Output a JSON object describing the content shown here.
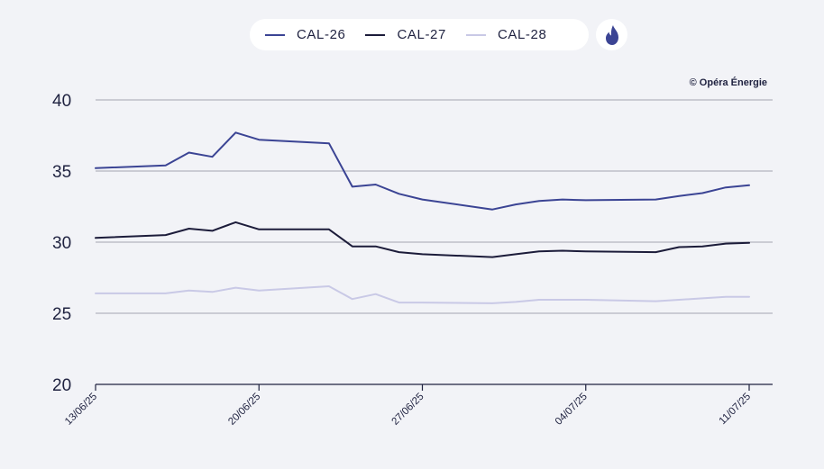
{
  "legend": {
    "items": [
      {
        "label": "CAL-26",
        "color": "#3b4494"
      },
      {
        "label": "CAL-27",
        "color": "#1c1c3a"
      },
      {
        "label": "CAL-28",
        "color": "#c9c9e6"
      }
    ],
    "flame_icon": "flame-icon",
    "flame_color": "#3b4494"
  },
  "copyright": "© Opéra Énergie",
  "chart_data": {
    "type": "line",
    "x": [
      "13/06/25",
      "16/06/25",
      "17/06/25",
      "18/06/25",
      "19/06/25",
      "20/06/25",
      "23/06/25",
      "24/06/25",
      "25/06/25",
      "26/06/25",
      "27/06/25",
      "30/06/25",
      "01/07/25",
      "02/07/25",
      "03/07/25",
      "04/07/25",
      "07/07/25",
      "08/07/25",
      "09/07/25",
      "10/07/25",
      "11/07/25"
    ],
    "x_days": [
      0,
      3,
      4,
      5,
      6,
      7,
      10,
      11,
      12,
      13,
      14,
      17,
      18,
      19,
      20,
      21,
      24,
      25,
      26,
      27,
      28
    ],
    "xticks": [
      "13/06/25",
      "20/06/25",
      "27/06/25",
      "04/07/25",
      "11/07/25"
    ],
    "xtick_days": [
      0,
      7,
      14,
      21,
      28
    ],
    "series": [
      {
        "name": "CAL-26",
        "color": "#3b4494",
        "values": [
          35.2,
          35.4,
          36.3,
          36.0,
          37.7,
          37.2,
          36.95,
          33.9,
          34.05,
          33.4,
          33.0,
          32.3,
          32.65,
          32.9,
          33.0,
          32.95,
          33.0,
          33.25,
          33.45,
          33.85,
          34.0
        ]
      },
      {
        "name": "CAL-27",
        "color": "#1c1c3a",
        "values": [
          30.3,
          30.5,
          30.95,
          30.8,
          31.4,
          30.9,
          30.9,
          29.7,
          29.7,
          29.3,
          29.15,
          28.95,
          29.15,
          29.35,
          29.4,
          29.35,
          29.3,
          29.65,
          29.7,
          29.9,
          29.95
        ]
      },
      {
        "name": "CAL-28",
        "color": "#c9c9e6",
        "values": [
          26.4,
          26.4,
          26.6,
          26.5,
          26.8,
          26.6,
          26.9,
          26.0,
          26.35,
          25.75,
          25.75,
          25.7,
          25.8,
          25.95,
          25.95,
          25.95,
          25.85,
          25.95,
          26.05,
          26.15,
          26.15
        ]
      }
    ],
    "yticks": [
      20,
      25,
      30,
      35,
      40
    ],
    "ylim": [
      20,
      40
    ],
    "grid": true,
    "legend_position": "top-center"
  }
}
